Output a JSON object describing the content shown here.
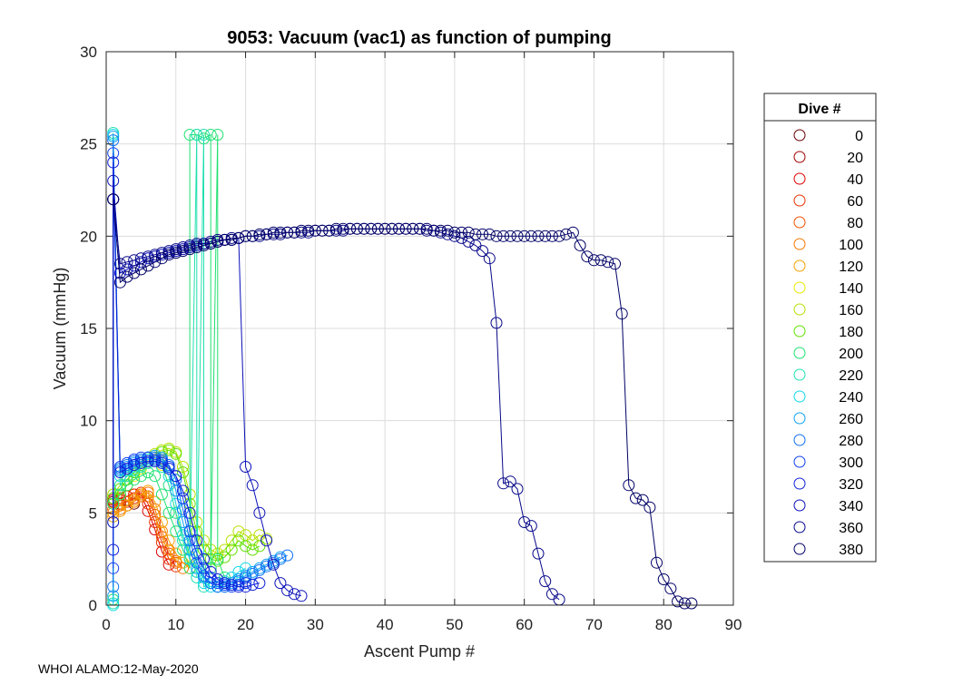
{
  "chart_data": {
    "type": "line",
    "title": "9053: Vacuum (vac1) as function of pumping",
    "xlabel": "Ascent Pump #",
    "ylabel": "Vacuum (mmHg)",
    "xlim": [
      0,
      90
    ],
    "ylim": [
      0,
      30
    ],
    "xticks": [
      0,
      10,
      20,
      30,
      40,
      50,
      60,
      70,
      80,
      90
    ],
    "yticks": [
      0,
      5,
      10,
      15,
      20,
      25,
      30
    ],
    "grid": true,
    "marker": "open-circle",
    "legend_title": "Dive #",
    "legend_position": "outside-right",
    "series": [
      {
        "name": "0",
        "color": "#6a0000",
        "x": [
          1,
          2,
          3,
          4
        ],
        "y": [
          5.6,
          5.5,
          5.4,
          5.5
        ]
      },
      {
        "name": "20",
        "color": "#a00000",
        "x": [
          1,
          2,
          3,
          4,
          5
        ],
        "y": [
          5.8,
          5.7,
          5.6,
          5.8,
          5.9
        ]
      },
      {
        "name": "40",
        "color": "#dd0000",
        "x": [
          1,
          2,
          3,
          4,
          5,
          6,
          7,
          8,
          9
        ],
        "y": [
          5.7,
          5.8,
          5.9,
          6.0,
          6.0,
          5.1,
          4.1,
          2.9,
          2.2
        ]
      },
      {
        "name": "60",
        "color": "#e83000",
        "x": [
          1,
          2,
          3,
          4,
          5,
          6,
          7,
          8,
          9,
          10
        ],
        "y": [
          5.5,
          5.7,
          5.9,
          6.0,
          6.1,
          5.5,
          4.5,
          3.4,
          2.5,
          2.1
        ]
      },
      {
        "name": "80",
        "color": "#f05000",
        "x": [
          1,
          2,
          3,
          4,
          5,
          6,
          7,
          8,
          9,
          10
        ],
        "y": [
          5.2,
          5.4,
          5.6,
          5.8,
          6.0,
          5.9,
          4.9,
          3.7,
          2.8,
          2.3
        ]
      },
      {
        "name": "100",
        "color": "#f57800",
        "x": [
          1,
          2,
          3,
          4,
          5,
          6,
          7,
          8,
          9,
          10,
          11
        ],
        "y": [
          5.0,
          5.2,
          5.4,
          5.6,
          5.9,
          6.1,
          5.2,
          4.0,
          3.0,
          2.4,
          2.0
        ]
      },
      {
        "name": "120",
        "color": "#f5a000",
        "x": [
          1,
          2,
          3,
          4,
          5,
          6,
          7,
          8,
          9,
          10,
          11,
          12
        ],
        "y": [
          4.8,
          5.1,
          5.4,
          5.7,
          6.0,
          6.2,
          5.6,
          4.5,
          3.5,
          2.8,
          2.3,
          2.0
        ]
      },
      {
        "name": "140",
        "color": "#e8e800",
        "x": [
          1,
          2,
          3,
          4,
          5,
          6,
          7,
          8,
          9,
          10,
          11,
          12,
          13
        ],
        "y": [
          5.5,
          6.0,
          6.5,
          7.0,
          7.4,
          7.8,
          8.0,
          7.6,
          6.5,
          5.0,
          3.8,
          2.6,
          1.8
        ]
      },
      {
        "name": "160",
        "color": "#b6e000",
        "x": [
          1,
          2,
          3,
          4,
          5,
          6,
          7,
          8,
          9,
          10,
          11,
          12,
          13,
          14,
          15,
          16,
          17,
          18,
          19,
          20,
          21,
          22,
          23
        ],
        "y": [
          6.0,
          6.5,
          7.0,
          7.4,
          7.8,
          8.0,
          8.2,
          8.4,
          8.5,
          8.3,
          7.5,
          6.0,
          4.5,
          3.5,
          3.0,
          2.8,
          3.0,
          3.5,
          4.0,
          3.8,
          3.5,
          3.8,
          3.6
        ]
      },
      {
        "name": "180",
        "color": "#60e000",
        "x": [
          1,
          2,
          3,
          4,
          5,
          6,
          7,
          8,
          9,
          10,
          11,
          12,
          13,
          14,
          15,
          16,
          17,
          18,
          19,
          20,
          21,
          22
        ],
        "y": [
          5.8,
          6.3,
          6.8,
          7.2,
          7.6,
          7.9,
          8.1,
          8.3,
          8.4,
          8.2,
          7.2,
          5.5,
          4.0,
          3.0,
          2.5,
          2.4,
          2.6,
          3.0,
          3.5,
          3.2,
          3.0,
          3.2
        ]
      },
      {
        "name": "200",
        "color": "#1ee070",
        "x": [
          1,
          1,
          2,
          3,
          4,
          5,
          6,
          7,
          8,
          9,
          10,
          11,
          12,
          12,
          13,
          14,
          15,
          15,
          16,
          16,
          17
        ],
        "y": [
          0.3,
          5.5,
          6.0,
          6.5,
          6.8,
          7.0,
          7.2,
          7.0,
          6.0,
          5.0,
          4.0,
          3.0,
          2.0,
          25.5,
          25.5,
          25.3,
          25.5,
          2.0,
          25.5,
          2.5,
          1.5
        ]
      },
      {
        "name": "220",
        "color": "#20e0b0",
        "x": [
          1,
          1,
          2,
          3,
          4,
          5,
          6,
          7,
          8,
          9,
          10,
          11,
          12,
          13,
          13,
          14,
          14,
          15,
          16,
          17
        ],
        "y": [
          0.1,
          25.6,
          6.5,
          7.0,
          7.3,
          7.5,
          7.7,
          7.8,
          7.5,
          6.5,
          5.0,
          3.5,
          2.5,
          25.5,
          1.5,
          25.5,
          1.0,
          1.2,
          1.0,
          1.3
        ]
      },
      {
        "name": "240",
        "color": "#10d8e8",
        "x": [
          1,
          1,
          2,
          3,
          4,
          5,
          6,
          7,
          8,
          9,
          10,
          11,
          12,
          13,
          14,
          15,
          16,
          17,
          18,
          19,
          20
        ],
        "y": [
          0.0,
          25.5,
          7.0,
          7.3,
          7.5,
          7.7,
          7.9,
          8.0,
          7.8,
          7.0,
          5.5,
          3.8,
          2.5,
          1.8,
          1.2,
          1.0,
          1.0,
          1.2,
          1.5,
          1.8,
          2.0
        ]
      },
      {
        "name": "260",
        "color": "#10a0f0",
        "x": [
          1,
          1,
          2,
          3,
          4,
          5,
          6,
          7,
          8,
          9,
          10,
          11,
          12,
          13,
          14,
          15,
          16,
          17,
          18,
          19,
          20,
          21,
          22,
          23,
          24,
          25
        ],
        "y": [
          0.5,
          25.4,
          7.3,
          7.5,
          7.7,
          7.8,
          8.0,
          8.1,
          8.0,
          7.5,
          6.2,
          4.5,
          3.0,
          2.0,
          1.5,
          1.2,
          1.0,
          1.0,
          1.2,
          1.4,
          1.6,
          1.8,
          2.0,
          2.2,
          2.4,
          2.6
        ]
      },
      {
        "name": "280",
        "color": "#1070f0",
        "x": [
          1,
          1,
          2,
          3,
          4,
          5,
          6,
          7,
          8,
          9,
          10,
          11,
          12,
          13,
          14,
          15,
          16,
          17,
          18,
          19,
          20,
          21,
          22,
          23,
          24,
          25,
          26
        ],
        "y": [
          1.0,
          25.2,
          7.4,
          7.6,
          7.8,
          7.9,
          8.0,
          8.0,
          7.9,
          7.6,
          6.8,
          5.2,
          3.5,
          2.3,
          1.6,
          1.2,
          1.0,
          1.0,
          1.1,
          1.3,
          1.5,
          1.7,
          1.9,
          2.1,
          2.3,
          2.5,
          2.7
        ]
      },
      {
        "name": "300",
        "color": "#1040f0",
        "x": [
          1,
          1,
          2,
          3,
          4,
          5,
          6,
          7,
          8,
          9,
          10,
          11,
          12,
          13,
          14,
          15,
          16,
          17,
          18,
          19,
          20
        ],
        "y": [
          2.0,
          24.5,
          7.5,
          7.7,
          7.9,
          8.0,
          8.0,
          7.9,
          7.8,
          7.5,
          7.0,
          5.8,
          4.0,
          2.8,
          2.0,
          1.5,
          1.2,
          1.1,
          1.0,
          1.1,
          1.2
        ]
      },
      {
        "name": "320",
        "color": "#1020d8",
        "x": [
          1,
          1,
          2,
          3,
          4,
          5,
          6,
          7,
          8,
          9,
          10,
          11,
          12,
          13,
          14,
          15,
          16,
          17,
          18,
          19,
          20,
          21,
          22
        ],
        "y": [
          3.0,
          24.0,
          7.2,
          7.4,
          7.6,
          7.7,
          7.8,
          7.8,
          7.7,
          7.4,
          7.0,
          6.2,
          5.0,
          3.5,
          2.5,
          1.8,
          1.4,
          1.2,
          1.1,
          1.0,
          1.0,
          1.1,
          1.2
        ]
      },
      {
        "name": "340",
        "color": "#0a10b8",
        "x": [
          1,
          1,
          2,
          3,
          4,
          5,
          6,
          7,
          8,
          9,
          10,
          11,
          12,
          13,
          14,
          15,
          16,
          17,
          18,
          19,
          20,
          21,
          22,
          23,
          24,
          25,
          26,
          27,
          28
        ],
        "y": [
          4.5,
          23.0,
          18.0,
          18.2,
          18.4,
          18.6,
          18.8,
          18.9,
          19.0,
          19.1,
          19.2,
          19.3,
          19.4,
          19.5,
          19.6,
          19.6,
          19.7,
          19.8,
          19.8,
          19.9,
          7.5,
          6.5,
          5.0,
          3.5,
          2.2,
          1.2,
          0.8,
          0.6,
          0.5
        ]
      },
      {
        "name": "360",
        "color": "#08088a",
        "x": [
          1,
          1,
          2,
          3,
          4,
          5,
          6,
          7,
          8,
          9,
          10,
          11,
          12,
          13,
          14,
          15,
          16,
          17,
          18,
          19,
          20,
          21,
          22,
          23,
          24,
          25,
          26,
          27,
          28,
          29,
          30,
          31,
          32,
          33,
          34,
          35,
          36,
          37,
          38,
          39,
          40,
          41,
          42,
          43,
          44,
          45,
          46,
          47,
          48,
          49,
          50,
          51,
          52,
          53,
          54,
          55,
          56,
          57,
          58,
          59,
          60,
          61,
          62,
          63,
          64,
          65
        ],
        "y": [
          22.0,
          22.0,
          18.5,
          18.6,
          18.7,
          18.8,
          18.9,
          19.0,
          19.1,
          19.2,
          19.3,
          19.4,
          19.5,
          19.6,
          19.6,
          19.7,
          19.8,
          19.8,
          19.9,
          19.9,
          20.0,
          20.0,
          20.0,
          20.1,
          20.1,
          20.1,
          20.2,
          20.2,
          20.2,
          20.2,
          20.3,
          20.3,
          20.3,
          20.3,
          20.3,
          20.4,
          20.4,
          20.4,
          20.4,
          20.4,
          20.4,
          20.4,
          20.4,
          20.4,
          20.4,
          20.4,
          20.3,
          20.3,
          20.2,
          20.1,
          20.0,
          19.9,
          19.7,
          19.5,
          19.2,
          18.8,
          15.3,
          6.6,
          6.7,
          6.3,
          4.5,
          4.3,
          2.8,
          1.3,
          0.6,
          0.3
        ]
      },
      {
        "name": "380",
        "color": "#000066",
        "x": [
          1,
          1,
          2,
          3,
          4,
          5,
          6,
          7,
          8,
          9,
          10,
          11,
          12,
          13,
          14,
          15,
          16,
          17,
          18,
          19,
          20,
          21,
          22,
          23,
          24,
          25,
          26,
          27,
          28,
          29,
          30,
          31,
          32,
          33,
          34,
          35,
          36,
          37,
          38,
          39,
          40,
          41,
          42,
          43,
          44,
          45,
          46,
          47,
          48,
          49,
          50,
          51,
          52,
          53,
          54,
          55,
          56,
          57,
          58,
          59,
          60,
          61,
          62,
          63,
          64,
          65,
          66,
          67,
          68,
          69,
          70,
          71,
          72,
          73,
          74,
          75,
          76,
          77,
          78,
          79,
          80,
          81,
          82,
          83,
          84
        ],
        "y": [
          22.0,
          22.0,
          17.5,
          17.8,
          18.0,
          18.2,
          18.4,
          18.6,
          18.8,
          19.0,
          19.1,
          19.2,
          19.3,
          19.4,
          19.5,
          19.6,
          19.7,
          19.8,
          19.8,
          19.9,
          20.0,
          20.0,
          20.1,
          20.1,
          20.2,
          20.2,
          20.2,
          20.2,
          20.3,
          20.3,
          20.3,
          20.3,
          20.3,
          20.4,
          20.4,
          20.4,
          20.4,
          20.4,
          20.4,
          20.4,
          20.4,
          20.4,
          20.4,
          20.4,
          20.4,
          20.4,
          20.4,
          20.3,
          20.3,
          20.3,
          20.2,
          20.2,
          20.2,
          20.1,
          20.1,
          20.1,
          20.0,
          20.0,
          20.0,
          20.0,
          20.0,
          20.0,
          20.0,
          20.0,
          20.0,
          20.0,
          20.1,
          20.2,
          19.5,
          18.9,
          18.7,
          18.7,
          18.6,
          18.5,
          15.8,
          6.5,
          5.8,
          5.7,
          5.3,
          2.3,
          1.4,
          0.9,
          0.2,
          0.1,
          0.1
        ]
      }
    ]
  },
  "footer_text": "WHOI ALAMO:12-May-2020"
}
